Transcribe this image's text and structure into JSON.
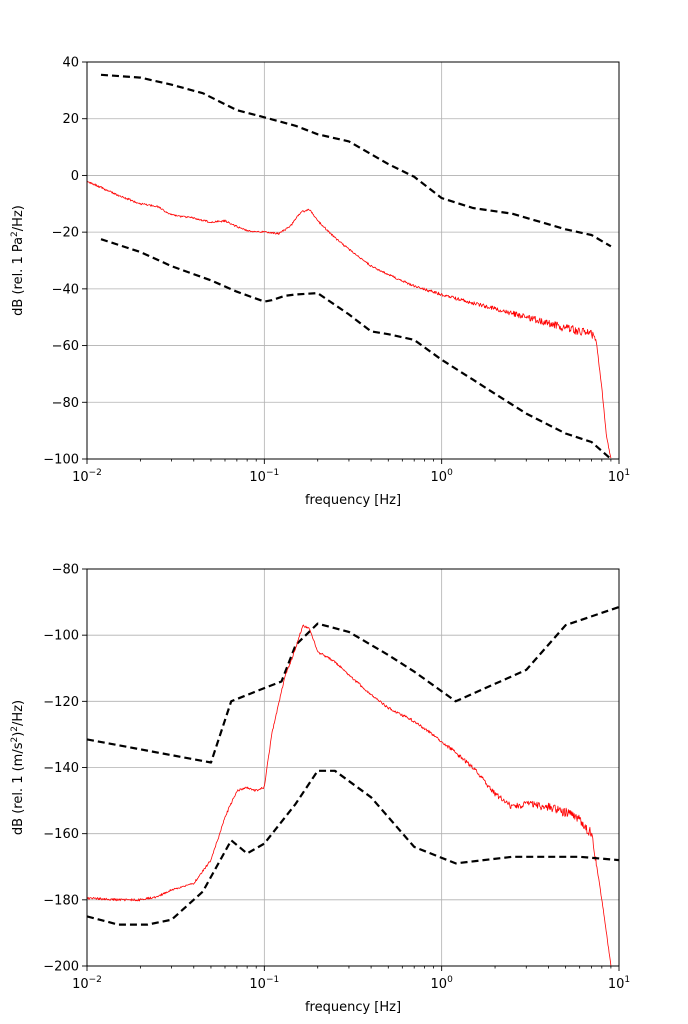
{
  "chart_data": [
    {
      "type": "line",
      "xlabel": "frequency [Hz]",
      "ylabel_parts": [
        "dB (rel. 1 Pa",
        "2",
        "/Hz)"
      ],
      "xscale": "log",
      "xlim": [
        0.01,
        10
      ],
      "ylim": [
        -100,
        40
      ],
      "grid": true,
      "x_ticks": [
        {
          "value": 0.01,
          "base": "10",
          "exp": "−2"
        },
        {
          "value": 0.1,
          "base": "10",
          "exp": "−1"
        },
        {
          "value": 1,
          "base": "10",
          "exp": "0"
        },
        {
          "value": 10,
          "base": "10",
          "exp": "1"
        }
      ],
      "y_ticks": [
        {
          "value": 40,
          "label": "40"
        },
        {
          "value": 20,
          "label": "20"
        },
        {
          "value": 0,
          "label": "0"
        },
        {
          "value": -20,
          "label": "−20"
        },
        {
          "value": -40,
          "label": "−40"
        },
        {
          "value": -60,
          "label": "−60"
        },
        {
          "value": -80,
          "label": "−80"
        },
        {
          "value": -100,
          "label": "−100"
        }
      ],
      "series": [
        {
          "style": "dashed",
          "color": "#000000",
          "x": [
            0.012,
            0.02,
            0.03,
            0.045,
            0.07,
            0.1,
            0.15,
            0.2,
            0.3,
            0.5,
            0.7,
            1.0,
            1.5,
            2.5,
            5,
            7,
            9
          ],
          "y": [
            35.5,
            34.5,
            32,
            29,
            23,
            20.5,
            17.5,
            14.5,
            12,
            4,
            -0.5,
            -8,
            -11.5,
            -13.5,
            -19,
            -21,
            -25
          ]
        },
        {
          "style": "solid",
          "color": "#ff0000",
          "noise": true,
          "x": [
            0.01,
            0.015,
            0.02,
            0.025,
            0.03,
            0.04,
            0.05,
            0.06,
            0.07,
            0.08,
            0.1,
            0.12,
            0.14,
            0.16,
            0.18,
            0.2,
            0.25,
            0.3,
            0.4,
            0.5,
            0.7,
            1.0,
            1.5,
            2,
            3,
            4,
            5,
            6,
            7,
            7.5,
            8,
            8.5,
            9
          ],
          "y": [
            -2,
            -7,
            -10,
            -11,
            -14,
            -15,
            -16.5,
            -16,
            -18,
            -19.5,
            -20,
            -20.5,
            -18,
            -13,
            -12,
            -16,
            -22,
            -26,
            -32,
            -35,
            -39,
            -42,
            -45,
            -47,
            -50,
            -52,
            -54,
            -55,
            -55.5,
            -60,
            -75,
            -92,
            -100
          ]
        },
        {
          "style": "dashed",
          "color": "#000000",
          "x": [
            0.012,
            0.02,
            0.03,
            0.05,
            0.07,
            0.1,
            0.11,
            0.13,
            0.15,
            0.2,
            0.3,
            0.4,
            0.5,
            0.7,
            1.0,
            1.5,
            2,
            3,
            5,
            7,
            9
          ],
          "y": [
            -22.5,
            -27,
            -32,
            -37,
            -41,
            -44.5,
            -44,
            -42.5,
            -42,
            -41.5,
            -49,
            -55,
            -56,
            -58,
            -65,
            -72,
            -77,
            -84,
            -91,
            -94,
            -100
          ]
        }
      ]
    },
    {
      "type": "line",
      "xlabel": "frequency [Hz]",
      "ylabel_parts": [
        "dB (rel. 1 (m/s",
        "2",
        ")",
        "2",
        "/Hz)"
      ],
      "xscale": "log",
      "xlim": [
        0.01,
        10
      ],
      "ylim": [
        -200,
        -80
      ],
      "grid": true,
      "x_ticks": [
        {
          "value": 0.01,
          "base": "10",
          "exp": "−2"
        },
        {
          "value": 0.1,
          "base": "10",
          "exp": "−1"
        },
        {
          "value": 1,
          "base": "10",
          "exp": "0"
        },
        {
          "value": 10,
          "base": "10",
          "exp": "1"
        }
      ],
      "y_ticks": [
        {
          "value": -80,
          "label": "−80"
        },
        {
          "value": -100,
          "label": "−100"
        },
        {
          "value": -120,
          "label": "−120"
        },
        {
          "value": -140,
          "label": "−140"
        },
        {
          "value": -160,
          "label": "−160"
        },
        {
          "value": -180,
          "label": "−180"
        },
        {
          "value": -200,
          "label": "−200"
        }
      ],
      "series": [
        {
          "style": "dashed",
          "color": "#000000",
          "x": [
            0.01,
            0.05,
            0.065,
            0.1,
            0.125,
            0.15,
            0.2,
            0.3,
            0.5,
            0.7,
            1.2,
            3,
            5,
            10
          ],
          "y": [
            -131.5,
            -138.5,
            -120,
            -116,
            -114,
            -103,
            -96.5,
            -99,
            -106,
            -111,
            -120,
            -110.5,
            -97,
            -91.5
          ]
        },
        {
          "style": "solid",
          "color": "#ff0000",
          "noise": true,
          "x": [
            0.01,
            0.015,
            0.02,
            0.025,
            0.03,
            0.04,
            0.05,
            0.06,
            0.07,
            0.08,
            0.09,
            0.1,
            0.11,
            0.13,
            0.15,
            0.165,
            0.18,
            0.2,
            0.25,
            0.3,
            0.4,
            0.5,
            0.7,
            1.0,
            1.5,
            2,
            2.5,
            3,
            4,
            5,
            6,
            7,
            7.5,
            8,
            8.5,
            9
          ],
          "y": [
            -179.5,
            -180,
            -180,
            -179,
            -177,
            -175,
            -168,
            -155,
            -147,
            -146,
            -147,
            -146,
            -130,
            -113,
            -104,
            -97,
            -98,
            -105,
            -108,
            -112,
            -118,
            -122,
            -126,
            -132,
            -140,
            -148,
            -152,
            -151,
            -152,
            -153.5,
            -156,
            -160,
            -170,
            -180,
            -190,
            -200
          ]
        },
        {
          "style": "dashed",
          "color": "#000000",
          "x": [
            0.01,
            0.015,
            0.022,
            0.03,
            0.045,
            0.065,
            0.08,
            0.1,
            0.15,
            0.2,
            0.25,
            0.4,
            0.7,
            1.2,
            2.5,
            6,
            10
          ],
          "y": [
            -185,
            -187.5,
            -187.5,
            -186,
            -177.5,
            -162,
            -166,
            -163,
            -151,
            -141,
            -141,
            -149,
            -164,
            -169,
            -167,
            -167,
            -168
          ]
        }
      ]
    }
  ]
}
